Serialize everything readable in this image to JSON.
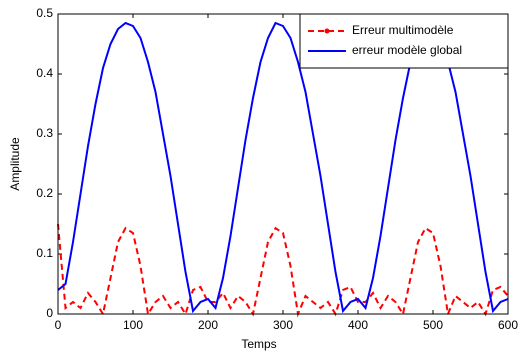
{
  "chart_data": {
    "type": "line",
    "xlabel": "Temps",
    "ylabel": "Amplitude",
    "x": [
      0,
      10,
      20,
      30,
      40,
      50,
      60,
      70,
      80,
      90,
      100,
      110,
      120,
      130,
      140,
      150,
      160,
      170,
      180,
      190,
      200,
      210,
      220,
      230,
      240,
      250,
      260,
      270,
      280,
      290,
      300,
      310,
      320,
      330,
      340,
      350,
      360,
      370,
      380,
      390,
      400,
      410,
      420,
      430,
      440,
      450,
      460,
      470,
      480,
      490,
      500,
      510,
      520,
      530,
      540,
      550,
      560,
      570,
      580,
      590,
      600
    ],
    "series": [
      {
        "name": "Erreur multimodèle",
        "color": "#ff0000",
        "dashed": true,
        "values": [
          0.15,
          0.01,
          0.02,
          0.01,
          0.035,
          0.02,
          0.0,
          0.06,
          0.12,
          0.143,
          0.135,
          0.08,
          0.0,
          0.02,
          0.03,
          0.01,
          0.02,
          0.0,
          0.04,
          0.045,
          0.02,
          0.02,
          0.035,
          0.01,
          0.03,
          0.02,
          0.0,
          0.06,
          0.12,
          0.143,
          0.135,
          0.08,
          0.0,
          0.03,
          0.02,
          0.01,
          0.02,
          0.0,
          0.04,
          0.045,
          0.02,
          0.02,
          0.035,
          0.01,
          0.03,
          0.02,
          0.0,
          0.06,
          0.12,
          0.143,
          0.135,
          0.08,
          0.0,
          0.03,
          0.02,
          0.01,
          0.02,
          0.0,
          0.04,
          0.045,
          0.03
        ]
      },
      {
        "name": "erreur modèle global",
        "color": "#0000ff",
        "dashed": false,
        "values": [
          0.04,
          0.05,
          0.12,
          0.2,
          0.28,
          0.35,
          0.41,
          0.45,
          0.475,
          0.485,
          0.48,
          0.46,
          0.42,
          0.37,
          0.3,
          0.23,
          0.15,
          0.07,
          0.005,
          0.02,
          0.025,
          0.01,
          0.06,
          0.13,
          0.21,
          0.29,
          0.36,
          0.42,
          0.46,
          0.485,
          0.48,
          0.46,
          0.42,
          0.37,
          0.3,
          0.23,
          0.15,
          0.07,
          0.005,
          0.02,
          0.025,
          0.01,
          0.06,
          0.13,
          0.21,
          0.29,
          0.36,
          0.42,
          0.46,
          0.485,
          0.48,
          0.46,
          0.42,
          0.37,
          0.3,
          0.23,
          0.15,
          0.07,
          0.005,
          0.02,
          0.025
        ]
      }
    ],
    "xlim": [
      0,
      600
    ],
    "xticks": [
      0,
      100,
      200,
      300,
      400,
      500,
      600
    ],
    "ylim": [
      0,
      0.5
    ],
    "yticks": [
      0,
      0.1,
      0.2,
      0.3,
      0.4,
      0.5
    ],
    "grid": false,
    "legend": "northeast"
  }
}
